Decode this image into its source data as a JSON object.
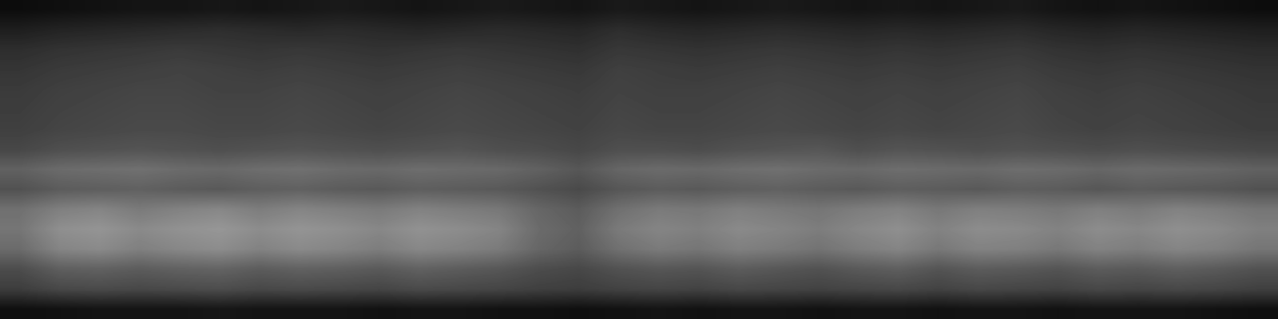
{
  "chart_data": {
    "type": "heatmap",
    "tick_labels": false,
    "color": "gray",
    "color_range": [
      0,
      1
    ],
    "cells": [
      [
        0.05,
        0.06,
        0.07,
        0.08,
        0.08,
        0.09,
        0.08,
        0.09,
        0.1,
        0.09,
        0.08,
        0.09,
        0.1,
        0.09,
        0.08,
        0.1,
        0.09,
        0.08,
        0.09,
        0.1,
        0.09,
        0.08,
        0.09,
        0.08,
        0.09,
        0.1,
        0.08,
        0.07,
        0.08,
        0.07,
        0.06,
        0.05
      ],
      [
        0.12,
        0.14,
        0.15,
        0.16,
        0.17,
        0.18,
        0.17,
        0.16,
        0.17,
        0.16,
        0.15,
        0.16,
        0.17,
        0.16,
        0.15,
        0.18,
        0.16,
        0.15,
        0.16,
        0.17,
        0.16,
        0.15,
        0.16,
        0.15,
        0.16,
        0.17,
        0.15,
        0.14,
        0.15,
        0.14,
        0.13,
        0.12
      ],
      [
        0.18,
        0.2,
        0.21,
        0.22,
        0.23,
        0.22,
        0.21,
        0.22,
        0.21,
        0.2,
        0.21,
        0.22,
        0.21,
        0.2,
        0.19,
        0.22,
        0.21,
        0.2,
        0.21,
        0.22,
        0.21,
        0.2,
        0.21,
        0.2,
        0.21,
        0.22,
        0.2,
        0.19,
        0.2,
        0.19,
        0.18,
        0.17
      ],
      [
        0.21,
        0.23,
        0.24,
        0.25,
        0.26,
        0.25,
        0.24,
        0.25,
        0.24,
        0.23,
        0.24,
        0.25,
        0.24,
        0.23,
        0.22,
        0.25,
        0.24,
        0.23,
        0.24,
        0.25,
        0.24,
        0.23,
        0.24,
        0.23,
        0.24,
        0.25,
        0.23,
        0.22,
        0.23,
        0.22,
        0.21,
        0.2
      ],
      [
        0.23,
        0.25,
        0.26,
        0.27,
        0.27,
        0.26,
        0.26,
        0.27,
        0.26,
        0.25,
        0.26,
        0.27,
        0.26,
        0.25,
        0.24,
        0.26,
        0.25,
        0.25,
        0.26,
        0.27,
        0.26,
        0.25,
        0.26,
        0.25,
        0.26,
        0.27,
        0.25,
        0.24,
        0.25,
        0.24,
        0.23,
        0.22
      ],
      [
        0.24,
        0.26,
        0.27,
        0.28,
        0.28,
        0.27,
        0.27,
        0.28,
        0.27,
        0.26,
        0.27,
        0.28,
        0.27,
        0.26,
        0.25,
        0.27,
        0.26,
        0.26,
        0.27,
        0.28,
        0.27,
        0.26,
        0.27,
        0.26,
        0.27,
        0.28,
        0.26,
        0.25,
        0.26,
        0.25,
        0.24,
        0.23
      ],
      [
        0.25,
        0.27,
        0.28,
        0.29,
        0.29,
        0.28,
        0.28,
        0.29,
        0.28,
        0.27,
        0.28,
        0.29,
        0.28,
        0.27,
        0.26,
        0.28,
        0.27,
        0.27,
        0.28,
        0.29,
        0.28,
        0.27,
        0.28,
        0.27,
        0.28,
        0.29,
        0.27,
        0.26,
        0.27,
        0.26,
        0.25,
        0.24
      ],
      [
        0.28,
        0.31,
        0.32,
        0.33,
        0.32,
        0.31,
        0.32,
        0.33,
        0.32,
        0.31,
        0.32,
        0.33,
        0.31,
        0.3,
        0.28,
        0.31,
        0.31,
        0.3,
        0.32,
        0.33,
        0.34,
        0.31,
        0.33,
        0.32,
        0.31,
        0.32,
        0.31,
        0.3,
        0.31,
        0.3,
        0.29,
        0.28
      ],
      [
        0.38,
        0.42,
        0.43,
        0.44,
        0.42,
        0.41,
        0.43,
        0.44,
        0.42,
        0.41,
        0.43,
        0.42,
        0.41,
        0.38,
        0.34,
        0.4,
        0.42,
        0.41,
        0.43,
        0.44,
        0.42,
        0.41,
        0.43,
        0.42,
        0.41,
        0.43,
        0.42,
        0.4,
        0.42,
        0.41,
        0.4,
        0.38
      ],
      [
        0.32,
        0.36,
        0.37,
        0.38,
        0.36,
        0.35,
        0.37,
        0.38,
        0.36,
        0.35,
        0.37,
        0.36,
        0.35,
        0.32,
        0.29,
        0.34,
        0.36,
        0.35,
        0.37,
        0.38,
        0.36,
        0.35,
        0.37,
        0.36,
        0.35,
        0.37,
        0.36,
        0.34,
        0.36,
        0.35,
        0.34,
        0.32
      ],
      [
        0.44,
        0.5,
        0.52,
        0.48,
        0.51,
        0.53,
        0.49,
        0.52,
        0.5,
        0.48,
        0.51,
        0.49,
        0.47,
        0.4,
        0.36,
        0.44,
        0.48,
        0.47,
        0.5,
        0.48,
        0.46,
        0.49,
        0.51,
        0.47,
        0.5,
        0.49,
        0.47,
        0.5,
        0.48,
        0.51,
        0.49,
        0.46
      ],
      [
        0.46,
        0.56,
        0.58,
        0.54,
        0.57,
        0.59,
        0.55,
        0.58,
        0.56,
        0.53,
        0.57,
        0.55,
        0.52,
        0.42,
        0.38,
        0.48,
        0.52,
        0.5,
        0.54,
        0.52,
        0.49,
        0.53,
        0.56,
        0.51,
        0.55,
        0.54,
        0.51,
        0.55,
        0.53,
        0.56,
        0.54,
        0.5
      ],
      [
        0.42,
        0.52,
        0.54,
        0.5,
        0.53,
        0.55,
        0.51,
        0.54,
        0.52,
        0.49,
        0.53,
        0.51,
        0.48,
        0.4,
        0.36,
        0.44,
        0.48,
        0.46,
        0.5,
        0.48,
        0.45,
        0.49,
        0.52,
        0.47,
        0.51,
        0.5,
        0.47,
        0.51,
        0.49,
        0.52,
        0.5,
        0.46
      ],
      [
        0.3,
        0.37,
        0.38,
        0.36,
        0.38,
        0.39,
        0.36,
        0.38,
        0.37,
        0.35,
        0.38,
        0.36,
        0.34,
        0.3,
        0.28,
        0.32,
        0.34,
        0.33,
        0.36,
        0.34,
        0.32,
        0.35,
        0.37,
        0.33,
        0.36,
        0.35,
        0.33,
        0.36,
        0.35,
        0.37,
        0.35,
        0.32
      ],
      [
        0.24,
        0.28,
        0.29,
        0.28,
        0.29,
        0.3,
        0.28,
        0.29,
        0.28,
        0.27,
        0.29,
        0.28,
        0.27,
        0.25,
        0.24,
        0.26,
        0.27,
        0.26,
        0.28,
        0.27,
        0.26,
        0.27,
        0.28,
        0.26,
        0.28,
        0.27,
        0.26,
        0.28,
        0.27,
        0.28,
        0.27,
        0.25
      ],
      [
        0.06,
        0.07,
        0.08,
        0.08,
        0.08,
        0.09,
        0.08,
        0.08,
        0.08,
        0.07,
        0.08,
        0.08,
        0.07,
        0.07,
        0.06,
        0.07,
        0.08,
        0.07,
        0.08,
        0.08,
        0.07,
        0.08,
        0.08,
        0.07,
        0.08,
        0.08,
        0.07,
        0.08,
        0.08,
        0.08,
        0.07,
        0.06
      ]
    ]
  }
}
